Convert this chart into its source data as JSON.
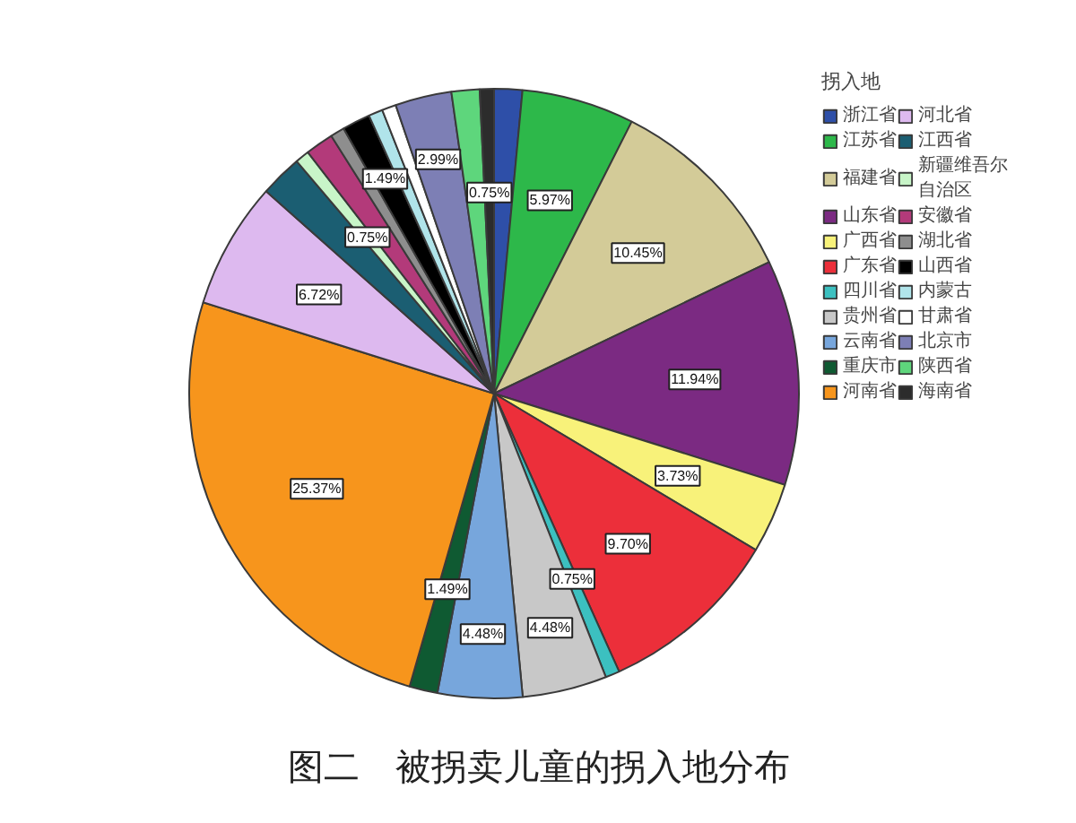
{
  "chart_data": {
    "type": "pie",
    "title": "图二　被拐卖儿童的拐入地分布",
    "legend_title": "拐入地",
    "legend": "right",
    "categories": [
      "浙江省",
      "江苏省",
      "福建省",
      "山东省",
      "广西省",
      "广东省",
      "四川省",
      "贵州省",
      "云南省",
      "重庆市",
      "河南省",
      "河北省",
      "江西省",
      "新疆维吾尔自治区",
      "安徽省",
      "湖北省",
      "山西省",
      "内蒙古",
      "甘肃省",
      "北京市",
      "陕西省",
      "海南省"
    ],
    "values": [
      1.49,
      5.97,
      10.45,
      11.94,
      3.73,
      9.7,
      0.75,
      4.48,
      4.48,
      1.49,
      25.37,
      6.72,
      2.24,
      0.75,
      1.49,
      0.75,
      1.49,
      0.75,
      0.75,
      2.99,
      1.49,
      0.75
    ],
    "colors": [
      "#2e4fa8",
      "#2db84a",
      "#d3cb98",
      "#7b2a82",
      "#f8f27a",
      "#ec2f3a",
      "#3cc0c0",
      "#c8c8c8",
      "#77a6dc",
      "#0f5a32",
      "#f7951c",
      "#ddb9ef",
      "#1b5e72",
      "#c8f5c8",
      "#b33a7a",
      "#8e8e8e",
      "#000000",
      "#b0e4ea",
      "#ffffff",
      "#7d7fb5",
      "#5ed67c",
      "#2c2c2c"
    ],
    "value_labels": [
      null,
      "5.97%",
      "10.45%",
      "11.94%",
      "3.73%",
      "9.70%",
      "0.75%",
      "4.48%",
      "4.48%",
      "1.49%",
      "25.37%",
      "6.72%",
      null,
      "0.75%",
      null,
      null,
      "1.49%",
      null,
      null,
      "2.99%",
      null,
      "0.75%"
    ]
  }
}
